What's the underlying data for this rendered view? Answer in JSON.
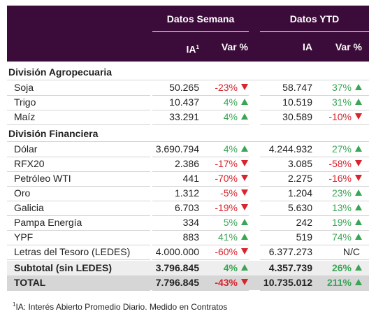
{
  "header": {
    "groups": [
      "Datos Semana",
      "Datos YTD"
    ],
    "columns": [
      {
        "label": "IA",
        "sup": "1"
      },
      {
        "label": "Var %"
      },
      {
        "label": "IA"
      },
      {
        "label": "Var %"
      }
    ]
  },
  "sections": [
    {
      "title": "División Agropecuaria",
      "rows": [
        [
          "Soja",
          "50.265",
          "-23%",
          "58.747",
          "37%"
        ],
        [
          "Trigo",
          "10.437",
          "4%",
          "10.519",
          "31%"
        ],
        [
          "Maíz",
          "33.291",
          "4%",
          "30.589",
          "-10%"
        ]
      ]
    },
    {
      "title": "División Financiera",
      "rows": [
        [
          "Dólar",
          "3.690.794",
          "4%",
          "4.244.932",
          "27%"
        ],
        [
          "RFX20",
          "2.386",
          "-17%",
          "3.085",
          "-58%"
        ],
        [
          "Petróleo WTI",
          "441",
          "-70%",
          "2.275",
          "-16%"
        ],
        [
          "Oro",
          "1.312",
          "-5%",
          "1.204",
          "23%"
        ],
        [
          "Galicia",
          "6.703",
          "-19%",
          "5.630",
          "13%"
        ],
        [
          "Pampa Energía",
          "334",
          "5%",
          "242",
          "19%"
        ],
        [
          "YPF",
          "883",
          "41%",
          "519",
          "74%"
        ],
        [
          "Letras del Tesoro (LEDES)",
          "4.000.000",
          "-60%",
          "6.377.273",
          "N/C"
        ]
      ]
    }
  ],
  "totals": [
    [
      "Subtotal (sin LEDES)",
      "3.796.845",
      "4%",
      "4.357.739",
      "26%"
    ],
    [
      "TOTAL",
      "7.796.845",
      "-43%",
      "10.735.012",
      "211%"
    ]
  ],
  "footnote": {
    "mark": "1",
    "text": "IA: Interés Abierto Promedio Diario. Medido en Contratos"
  }
}
